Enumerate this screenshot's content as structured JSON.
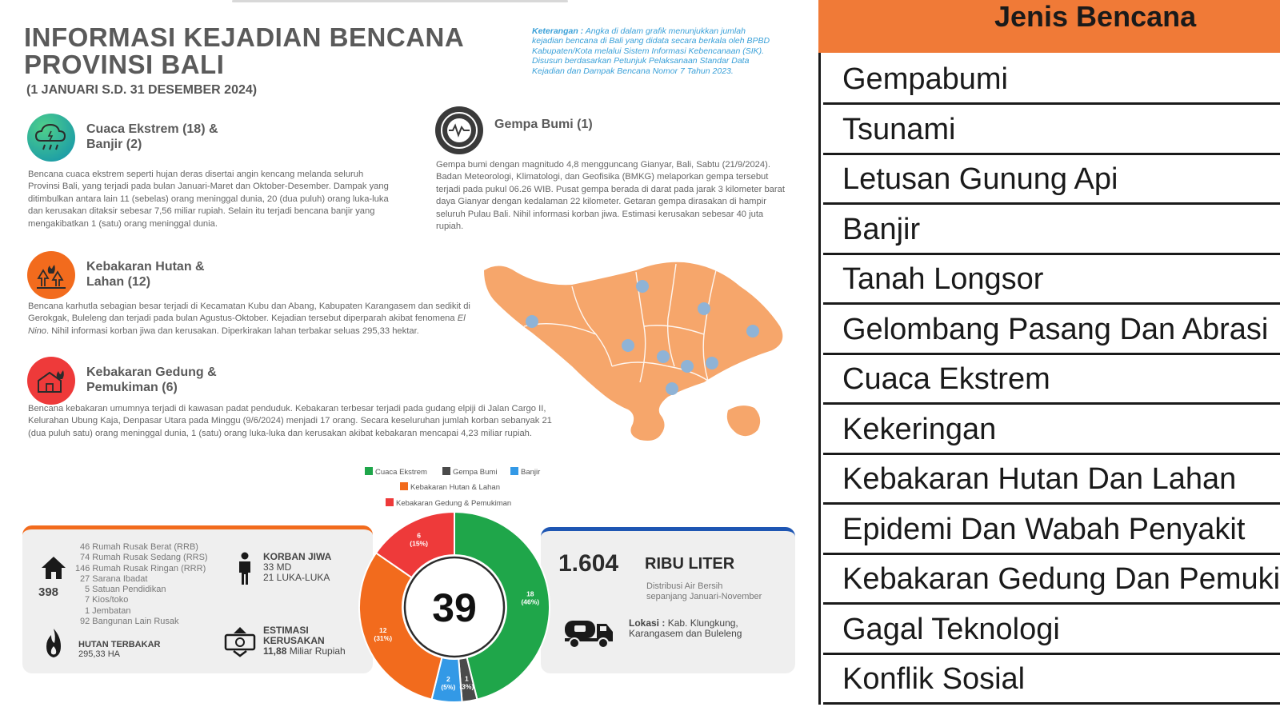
{
  "infographic": {
    "title_line1": "INFORMASI KEJADIAN BENCANA",
    "title_line2": "PROVINSI BALI",
    "period": "(1 JANUARI S.D. 31 DESEMBER 2024)",
    "note_label": "Keterangan :",
    "note_text": "Angka di dalam grafik menunjukkan jumlah kejadian bencana di Bali yang didata secara berkala oleh BPBD Kabupaten/Kota melalui Sistem Informasi Kebencanaan (SIK). Disusun berdasarkan Petunjuk Pelaksanaan Standar Data Kejadian dan Dampak Bencana Nomor 7 Tahun 2023.",
    "sections": {
      "cuaca": {
        "icon": "storm-cloud-icon",
        "title_line1": "Cuaca Ekstrem (18) &",
        "title_line2": "Banjir (2)",
        "body": "Bencana cuaca ekstrem seperti hujan deras disertai angin kencang melanda seluruh Provinsi Bali, yang terjadi pada bulan Januari-Maret dan Oktober-Desember. Dampak yang ditimbulkan antara lain 11 (sebelas) orang meninggal dunia, 20 (dua puluh) orang luka-luka dan kerusakan ditaksir sebesar 7,56 miliar rupiah. Selain itu terjadi bencana banjir yang mengakibatkan 1 (satu) orang meninggal dunia."
      },
      "gempa": {
        "icon": "seismograph-icon",
        "title": "Gempa Bumi (1)",
        "body": "Gempa bumi dengan magnitudo 4,8 mengguncang Gianyar, Bali, Sabtu (21/9/2024). Badan Meteorologi, Klimatologi, dan Geofisika (BMKG) melaporkan gempa tersebut terjadi pada pukul 06.26 WIB. Pusat gempa berada di darat pada jarak 3 kilometer barat daya Gianyar dengan kedalaman 22 kilometer. Getaran gempa dirasakan di hampir seluruh Pulau Bali. Nihil informasi korban jiwa. Estimasi kerusakan sebesar 40 juta rupiah."
      },
      "karhutla": {
        "icon": "forest-fire-icon",
        "title_line1": "Kebakaran Hutan &",
        "title_line2": "Lahan (12)",
        "body_1": "Bencana karhutla sebagian besar terjadi di Kecamatan Kubu dan Abang, Kabupaten Karangasem dan sedikit di Gerokgak, Buleleng dan terjadi pada bulan Agustus-Oktober. Kejadian tersebut diperparah akibat fenomena ",
        "body_em": "El Nino",
        "body_2": ". Nihil informasi korban jiwa dan kerusakan. Diperkirakan lahan terbakar seluas 295,33 hektar."
      },
      "gedung": {
        "icon": "house-fire-icon",
        "title_line1": "Kebakaran Gedung &",
        "title_line2": "Pemukiman (6)",
        "body": "Bencana kebakaran umumnya terjadi di kawasan padat penduduk. Kebakaran terbesar terjadi pada gudang elpiji di Jalan Cargo II, Kelurahan Ubung Kaja, Denpasar Utara pada Minggu (9/6/2024) menjadi 17 orang. Secara keseluruhan jumlah korban sebanyak 21 (dua puluh satu) orang meninggal dunia, 1 (satu) orang luka-luka dan kerusakan akibat kebakaran mencapai 4,23 miliar rupiah."
      }
    },
    "legend": [
      "Cuaca Ekstrem",
      "Gempa Bumi",
      "Banjir",
      "Kebakaran Hutan & Lahan",
      "Kebakaran Gedung & Pemukiman"
    ],
    "damage": {
      "house_icon": "house-icon",
      "house_total": "398",
      "items": [
        "46 Rumah Rusak Berat (RRB)",
        "74 Rumah Rusak Sedang (RRS)",
        "146 Rumah Rusak Ringan (RRR)",
        "27 Sarana Ibadat",
        "5 Satuan Pendidikan",
        "7 Kios/toko",
        "1 Jembatan",
        "92 Bangunan Lain Rusak"
      ],
      "victims_icon": "person-icon",
      "victims_title": "KORBAN JIWA",
      "victims_line1": "33 MD",
      "victims_line2": "21 LUKA-LUKA",
      "forest_icon": "flame-icon",
      "forest_title": "HUTAN TERBAKAR",
      "forest_value": "295,33 HA",
      "loss_icon": "money-icon",
      "loss_title_1": "ESTIMASI",
      "loss_title_2": "KERUSAKAN",
      "loss_value": "11,88",
      "loss_unit": " Miliar Rupiah"
    },
    "water": {
      "value": "1.604",
      "unit": "RIBU LITER",
      "desc_1": "Distribusi Air Bersih",
      "desc_2": "sepanjang Januari-November",
      "truck_icon": "water-truck-icon",
      "location_label": "Lokasi :",
      "location_1": " Kab. Klungkung,",
      "location_2": "Karangasem dan Buleleng"
    },
    "total": "39",
    "colors": {
      "cuaca": "#1fa64a",
      "gempa": "#4a4a4a",
      "banjir": "#3399e6",
      "karhutla": "#f26b1d",
      "gedung": "#ee3a3a",
      "accent_orange": "#f26b1d",
      "accent_blue": "#1e56b3",
      "map": "#f6a66b"
    }
  },
  "chart_data": {
    "type": "pie",
    "center_label": "39",
    "slices": [
      {
        "name": "Cuaca Ekstrem",
        "value": 18,
        "label_1": "18",
        "label_2": "(46%)",
        "color": "#1fa64a"
      },
      {
        "name": "Gempa Bumi",
        "value": 1,
        "label_1": "1",
        "label_2": "(3%)",
        "color": "#4a4a4a"
      },
      {
        "name": "Banjir",
        "value": 2,
        "label_1": "2",
        "label_2": "(5%)",
        "color": "#3399e6"
      },
      {
        "name": "Kebakaran Hutan & Lahan",
        "value": 12,
        "label_1": "12",
        "label_2": "(31%)",
        "color": "#f26b1d"
      },
      {
        "name": "Kebakaran Gedung & Pemukiman",
        "value": 6,
        "label_1": "6",
        "label_2": "(15%)",
        "color": "#ee3a3a"
      }
    ]
  },
  "jenis_table": {
    "header": "Jenis Bencana",
    "rows": [
      "Gempabumi",
      "Tsunami",
      "Letusan Gunung Api",
      "Banjir",
      "Tanah Longsor",
      "Gelombang Pasang Dan Abrasi",
      "Cuaca Ekstrem",
      "Kekeringan",
      "Kebakaran Hutan Dan Lahan",
      "Epidemi Dan Wabah Penyakit",
      "Kebakaran Gedung Dan Pemukiman",
      "Gagal Teknologi",
      "Konflik Sosial"
    ]
  }
}
